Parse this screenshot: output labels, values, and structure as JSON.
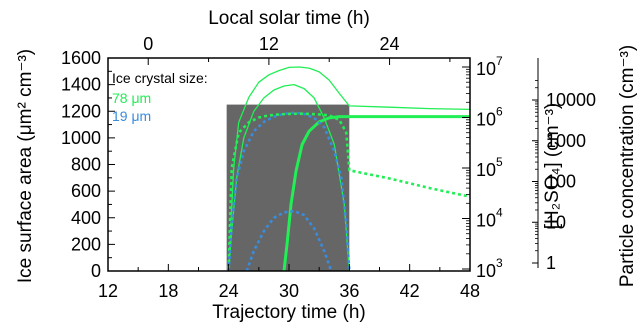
{
  "chart_data": {
    "type": "line",
    "xlabel": "Trajectory time (h)",
    "top_xlabel": "Local solar time (h)",
    "ylabel": "Ice surface area (μm² cm⁻³)",
    "y2label": "[H₂SO₄] (cm⁻³)",
    "y3label": "Particle concentration (cm⁻³)",
    "xlim": [
      12,
      48
    ],
    "xticks": [
      "12",
      "18",
      "24",
      "30",
      "36",
      "42",
      "48"
    ],
    "top_ticks": [
      {
        "x": 16,
        "label": "0"
      },
      {
        "x": 28,
        "label": "12"
      },
      {
        "x": 40,
        "label": "24"
      }
    ],
    "ylim": [
      0,
      1600
    ],
    "yticks": [
      "0",
      "200",
      "400",
      "600",
      "800",
      "1000",
      "1200",
      "1400",
      "1600"
    ],
    "y2_ticks": [
      {
        "value": 1000,
        "label": "10",
        "exp": "3"
      },
      {
        "value": 10000,
        "label": "10",
        "exp": "4"
      },
      {
        "value": 100000,
        "label": "10",
        "exp": "5"
      },
      {
        "value": 1000000,
        "label": "10",
        "exp": "6"
      },
      {
        "value": 10000000,
        "label": "10",
        "exp": "7"
      }
    ],
    "y3_ticks": [
      {
        "value": 1,
        "label": "1"
      },
      {
        "value": 10,
        "label": "10"
      },
      {
        "value": 100,
        "label": "100"
      },
      {
        "value": 1000,
        "label": "1000"
      },
      {
        "value": 10000,
        "label": "10000"
      }
    ],
    "shaded_region": {
      "x0": 23.8,
      "x1": 36,
      "ymax": 1250,
      "color": "#666666"
    },
    "legend": {
      "title": "Ice crystal size:",
      "entries": [
        {
          "label": "78 μm",
          "color": "#22ee55"
        },
        {
          "label": "19 μm",
          "color": "#3a8cdc"
        }
      ],
      "placement": "top-left"
    },
    "series": [
      {
        "color": "#22ee55",
        "style": "thin",
        "axis": "h2so4",
        "x": [
          24,
          24.5,
          25,
          26,
          27,
          28,
          29,
          30,
          31,
          32,
          33,
          34,
          35,
          36,
          40,
          44,
          48
        ],
        "y": [
          1000,
          100000,
          800000,
          2500000,
          5000000,
          7000000,
          8500000,
          9800000,
          10000000,
          9500000,
          8000000,
          5500000,
          3000000,
          1700000,
          1600000,
          1500000,
          1450000
        ]
      },
      {
        "color": "#22ee55",
        "style": "thin",
        "axis": "ice",
        "x": [
          24,
          24.3,
          24.8,
          25.5,
          26.5,
          27.5,
          28.5,
          29.5,
          30.5,
          31.5,
          32.5,
          33.5,
          34.5,
          35.5,
          36
        ],
        "y": [
          0,
          300,
          700,
          1000,
          1200,
          1300,
          1360,
          1390,
          1400,
          1370,
          1300,
          1150,
          950,
          500,
          0
        ]
      },
      {
        "color": "#22ee55",
        "style": "dotted",
        "axis": "h2so4",
        "x": [
          24,
          24.3,
          25,
          26,
          27,
          28,
          29,
          30,
          31,
          32,
          33,
          34,
          35,
          35.7,
          36,
          40,
          44,
          48
        ],
        "y": [
          1000,
          100000,
          500000,
          800000,
          1000000,
          1100000,
          1150000,
          1180000,
          1190000,
          1180000,
          1150000,
          1100000,
          900000,
          500000,
          90000,
          62000,
          40000,
          27000
        ]
      },
      {
        "color": "#22ee55",
        "style": "thick",
        "axis": "ice",
        "x": [
          29.5,
          29.8,
          30.2,
          30.7,
          31.3,
          32,
          33,
          34,
          35,
          36,
          40,
          44,
          48
        ],
        "y": [
          0,
          200,
          500,
          750,
          950,
          1050,
          1120,
          1150,
          1160,
          1160,
          1160,
          1160,
          1160
        ]
      },
      {
        "color": "#3a8cdc",
        "style": "dotted",
        "axis": "ice",
        "x": [
          24,
          24.3,
          24.8,
          25.5,
          26.5,
          27.5,
          28.5,
          29.5,
          30.5,
          31.5,
          32.5,
          33.5,
          34.5,
          35.2,
          35.7,
          36
        ],
        "y": [
          0,
          350,
          700,
          900,
          1050,
          1120,
          1160,
          1180,
          1190,
          1180,
          1150,
          1080,
          900,
          700,
          350,
          0
        ]
      },
      {
        "color": "#3a8cdc",
        "style": "dotted",
        "axis": "ice",
        "x": [
          25.8,
          26.5,
          27.5,
          28.5,
          29.5,
          30.5,
          31.5,
          32.5,
          33.5,
          34.2
        ],
        "y": [
          0,
          150,
          300,
          400,
          440,
          450,
          420,
          320,
          150,
          0
        ]
      }
    ]
  }
}
